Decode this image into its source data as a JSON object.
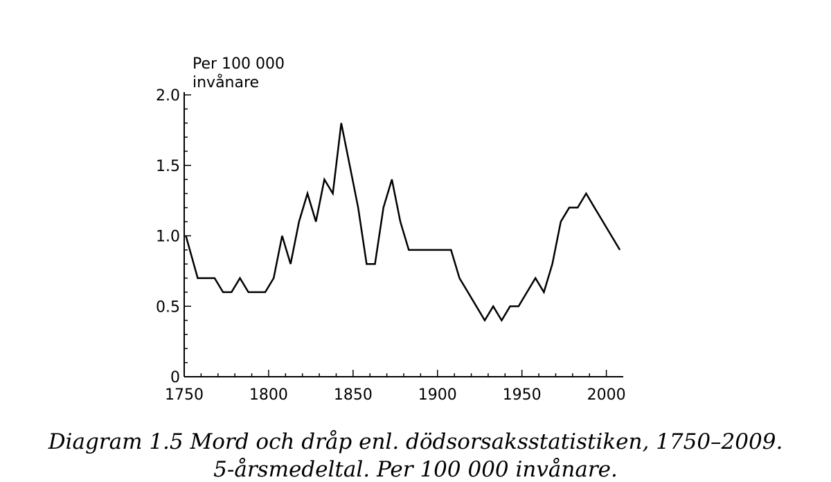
{
  "chart_data": {
    "type": "line",
    "ylabel_lines": [
      "Per 100 000",
      "invånare"
    ],
    "xlabel": "",
    "x_ticks": [
      1750,
      1800,
      1850,
      1900,
      1950,
      2000
    ],
    "y_ticks": [
      {
        "value": 0,
        "label": "0"
      },
      {
        "value": 0.5,
        "label": "0.5"
      },
      {
        "value": 1.0,
        "label": "1.0"
      },
      {
        "value": 1.5,
        "label": "1.5"
      },
      {
        "value": 2.0,
        "label": "2.0"
      }
    ],
    "xlim": [
      1750,
      2010
    ],
    "ylim": [
      0,
      2.0
    ],
    "grid": false,
    "series": [
      {
        "x": [
          1751,
          1758,
          1768,
          1773,
          1778,
          1783,
          1788,
          1793,
          1798,
          1803,
          1808,
          1813,
          1818,
          1823,
          1828,
          1833,
          1838,
          1843,
          1848,
          1853,
          1858,
          1863,
          1868,
          1873,
          1878,
          1883,
          1888,
          1893,
          1898,
          1903,
          1908,
          1913,
          1918,
          1923,
          1928,
          1933,
          1938,
          1943,
          1948,
          1953,
          1958,
          1963,
          1968,
          1973,
          1978,
          1983,
          1988,
          1993,
          1998,
          2003,
          2008
        ],
        "y": [
          1.0,
          0.7,
          0.7,
          0.6,
          0.6,
          0.7,
          0.6,
          0.6,
          0.6,
          0.7,
          1.0,
          0.8,
          1.1,
          1.3,
          1.1,
          1.4,
          1.3,
          1.8,
          1.5,
          1.2,
          0.8,
          0.8,
          1.2,
          1.4,
          1.1,
          0.9,
          0.9,
          0.9,
          0.9,
          0.9,
          0.9,
          0.7,
          0.6,
          0.5,
          0.4,
          0.5,
          0.4,
          0.5,
          0.5,
          0.6,
          0.7,
          0.6,
          0.8,
          1.1,
          1.2,
          1.2,
          1.3,
          1.2,
          1.1,
          1.0,
          0.9
        ]
      }
    ]
  },
  "caption": {
    "line1": "Diagram 1.5  Mord och dråp enl. dödsorsaksstatistiken, 1750–2009.",
    "line2": "5-årsmedeltal. Per 100 000 invånare."
  }
}
